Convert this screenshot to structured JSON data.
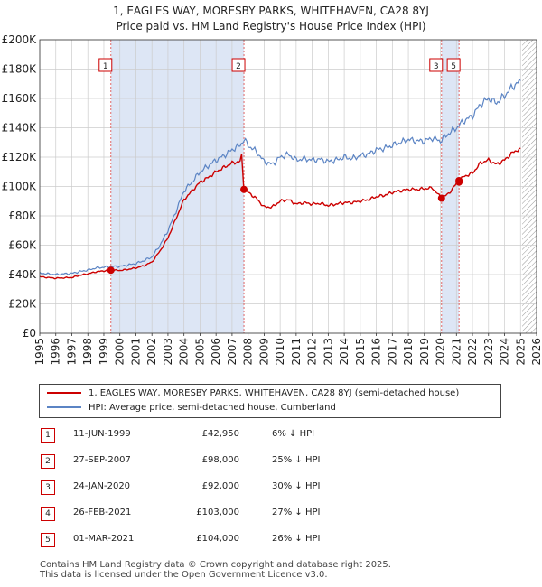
{
  "title_line1": "1, EAGLES WAY, MORESBY PARKS, WHITEHAVEN, CA28 8YJ",
  "title_line2": "Price paid vs. HM Land Registry's House Price Index (HPI)",
  "colors": {
    "property": "#cc0000",
    "hpi": "#5b84c4",
    "shade": "#dde6f5",
    "hatch": "#999999"
  },
  "legend": {
    "property_label": "1, EAGLES WAY, MORESBY PARKS, WHITEHAVEN, CA28 8YJ (semi-detached house)",
    "hpi_label": "HPI: Average price, semi-detached house, Cumberland"
  },
  "sales": [
    {
      "num": "1",
      "date": "11-JUN-1999",
      "price": "£42,950",
      "hpi": "6% ↓ HPI"
    },
    {
      "num": "2",
      "date": "27-SEP-2007",
      "price": "£98,000",
      "hpi": "25% ↓ HPI"
    },
    {
      "num": "3",
      "date": "24-JAN-2020",
      "price": "£92,000",
      "hpi": "30% ↓ HPI"
    },
    {
      "num": "4",
      "date": "26-FEB-2021",
      "price": "£103,000",
      "hpi": "27% ↓ HPI"
    },
    {
      "num": "5",
      "date": "01-MAR-2021",
      "price": "£104,000",
      "hpi": "26% ↓ HPI"
    }
  ],
  "footer_line1": "Contains HM Land Registry data © Crown copyright and database right 2025.",
  "footer_line2": "This data is licensed under the Open Government Licence v3.0.",
  "chart_data": {
    "type": "line",
    "xlim": [
      1995,
      2026
    ],
    "ylim": [
      0,
      200000
    ],
    "y_ticks": [
      0,
      20000,
      40000,
      60000,
      80000,
      100000,
      120000,
      140000,
      160000,
      180000,
      200000
    ],
    "y_tick_labels": [
      "£0",
      "£20K",
      "£40K",
      "£60K",
      "£80K",
      "£100K",
      "£120K",
      "£140K",
      "£160K",
      "£180K",
      "£200K"
    ],
    "x_ticks": [
      1995,
      1996,
      1997,
      1998,
      1999,
      2000,
      2001,
      2002,
      2003,
      2004,
      2005,
      2006,
      2007,
      2008,
      2009,
      2010,
      2011,
      2012,
      2013,
      2014,
      2015,
      2016,
      2017,
      2018,
      2019,
      2020,
      2021,
      2022,
      2023,
      2024,
      2025,
      2026
    ],
    "x_tick_labels": [
      "1995",
      "1996",
      "1997",
      "1998",
      "1999",
      "2000",
      "2001",
      "2002",
      "2003",
      "2004",
      "2005",
      "2006",
      "2007",
      "2008",
      "2009",
      "2010",
      "2011",
      "2012",
      "2013",
      "2014",
      "2015",
      "2016",
      "2017",
      "2018",
      "2019",
      "2020",
      "2021",
      "2022",
      "2023",
      "2024",
      "2025",
      "2026"
    ],
    "shaded_ranges": [
      [
        1999.44,
        2007.74
      ],
      [
        2020.07,
        2021.16
      ]
    ],
    "forecast_from": 2025.1,
    "series": [
      {
        "name": "HPI: Average price, semi-detached house, Cumberland",
        "points": [
          [
            1995,
            41000
          ],
          [
            1995.5,
            40500
          ],
          [
            1996,
            40000
          ],
          [
            1996.5,
            40500
          ],
          [
            1997,
            40800
          ],
          [
            1997.5,
            42000
          ],
          [
            1998,
            43000
          ],
          [
            1998.5,
            44500
          ],
          [
            1999,
            45000
          ],
          [
            1999.5,
            45500
          ],
          [
            2000,
            45500
          ],
          [
            2000.5,
            46500
          ],
          [
            2001,
            47500
          ],
          [
            2001.5,
            49500
          ],
          [
            2002,
            52000
          ],
          [
            2002.5,
            60000
          ],
          [
            2003,
            70000
          ],
          [
            2003.5,
            83000
          ],
          [
            2004,
            97000
          ],
          [
            2004.5,
            103000
          ],
          [
            2005,
            110000
          ],
          [
            2005.5,
            114000
          ],
          [
            2006,
            118000
          ],
          [
            2006.5,
            121000
          ],
          [
            2007,
            125000
          ],
          [
            2007.5,
            128000
          ],
          [
            2007.75,
            132000
          ],
          [
            2008,
            128000
          ],
          [
            2008.5,
            124000
          ],
          [
            2009,
            117000
          ],
          [
            2009.5,
            115000
          ],
          [
            2010,
            120000
          ],
          [
            2010.5,
            122000
          ],
          [
            2011,
            118000
          ],
          [
            2011.5,
            119000
          ],
          [
            2012,
            118000
          ],
          [
            2012.5,
            118500
          ],
          [
            2013,
            117000
          ],
          [
            2013.5,
            118000
          ],
          [
            2014,
            120000
          ],
          [
            2014.5,
            119000
          ],
          [
            2015,
            121000
          ],
          [
            2015.5,
            122000
          ],
          [
            2016,
            125000
          ],
          [
            2016.5,
            126000
          ],
          [
            2017,
            128000
          ],
          [
            2017.5,
            130000
          ],
          [
            2018,
            132000
          ],
          [
            2018.5,
            131000
          ],
          [
            2019,
            131000
          ],
          [
            2019.5,
            133000
          ],
          [
            2020,
            131000
          ],
          [
            2020.5,
            136000
          ],
          [
            2021,
            140000
          ],
          [
            2021.5,
            145000
          ],
          [
            2022,
            148000
          ],
          [
            2022.5,
            156000
          ],
          [
            2023,
            160000
          ],
          [
            2023.5,
            157000
          ],
          [
            2024,
            162000
          ],
          [
            2024.5,
            168000
          ],
          [
            2025,
            172000
          ]
        ]
      },
      {
        "name": "1, EAGLES WAY, MORESBY PARKS, WHITEHAVEN, CA28 8YJ (semi-detached house)",
        "points": [
          [
            1995,
            38500
          ],
          [
            1995.5,
            38000
          ],
          [
            1996,
            37500
          ],
          [
            1996.5,
            37800
          ],
          [
            1997,
            38000
          ],
          [
            1997.5,
            39500
          ],
          [
            1998,
            40500
          ],
          [
            1998.5,
            41800
          ],
          [
            1999,
            42500
          ],
          [
            1999.44,
            42950
          ],
          [
            2000,
            42800
          ],
          [
            2000.5,
            43500
          ],
          [
            2001,
            44500
          ],
          [
            2001.5,
            46000
          ],
          [
            2002,
            48500
          ],
          [
            2002.5,
            56000
          ],
          [
            2003,
            65000
          ],
          [
            2003.5,
            78000
          ],
          [
            2004,
            91000
          ],
          [
            2004.5,
            97000
          ],
          [
            2005,
            103000
          ],
          [
            2005.5,
            106000
          ],
          [
            2006,
            110000
          ],
          [
            2006.5,
            113000
          ],
          [
            2007,
            116000
          ],
          [
            2007.5,
            117000
          ],
          [
            2007.6,
            121000
          ],
          [
            2007.74,
            98000
          ],
          [
            2008,
            96000
          ],
          [
            2008.5,
            92000
          ],
          [
            2009,
            86000
          ],
          [
            2009.5,
            86000
          ],
          [
            2010,
            90000
          ],
          [
            2010.5,
            91000
          ],
          [
            2011,
            88000
          ],
          [
            2011.5,
            89000
          ],
          [
            2012,
            88000
          ],
          [
            2012.5,
            88500
          ],
          [
            2013,
            87000
          ],
          [
            2013.5,
            88000
          ],
          [
            2014,
            89000
          ],
          [
            2014.5,
            89000
          ],
          [
            2015,
            90000
          ],
          [
            2015.5,
            91000
          ],
          [
            2016,
            93000
          ],
          [
            2016.5,
            94000
          ],
          [
            2017,
            96000
          ],
          [
            2017.5,
            97000
          ],
          [
            2018,
            98000
          ],
          [
            2018.5,
            98000
          ],
          [
            2019,
            98500
          ],
          [
            2019.5,
            99000
          ],
          [
            2020.07,
            92000
          ],
          [
            2020.5,
            95000
          ],
          [
            2021.16,
            104000
          ],
          [
            2021.5,
            107000
          ],
          [
            2022,
            109000
          ],
          [
            2022.5,
            116000
          ],
          [
            2023,
            118000
          ],
          [
            2023.5,
            115000
          ],
          [
            2024,
            118000
          ],
          [
            2024.5,
            123000
          ],
          [
            2025,
            126000
          ]
        ]
      }
    ],
    "sale_markers": [
      {
        "label": "1",
        "x": 1999.44,
        "y": 42950
      },
      {
        "label": "2",
        "x": 2007.74,
        "y": 98000
      },
      {
        "label": "3",
        "x": 2020.07,
        "y": 92000
      },
      {
        "label": "4",
        "x": 2021.16,
        "y": 103000
      },
      {
        "label": "5",
        "x": 2021.16,
        "y": 104000
      }
    ],
    "chart_labels": [
      {
        "label": "1",
        "x": 1999.44
      },
      {
        "label": "2",
        "x": 2007.74
      },
      {
        "label": "3",
        "x": 2020.07
      },
      {
        "label": "5",
        "x": 2021.16
      }
    ]
  }
}
